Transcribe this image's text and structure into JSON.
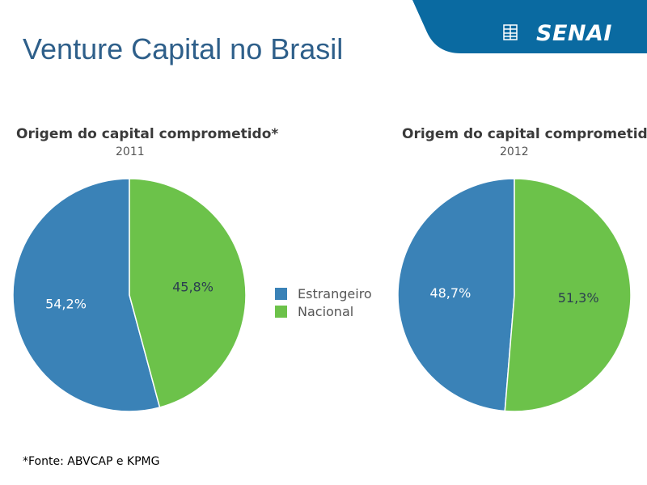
{
  "slide": {
    "title": "Venture Capital no Brasil",
    "footnote": "*Fonte: ABVCAP e KPMG"
  },
  "logo": {
    "text": "SENAI",
    "color": "#0a6aa1",
    "icon": "senai-grid-icon"
  },
  "colors": {
    "estrangeiro": "#3a82b7",
    "nacional": "#6cc24a"
  },
  "chart_data": [
    {
      "type": "pie",
      "title": "Origem do capital comprometido*",
      "subtitle": "2011",
      "slices": [
        {
          "name": "Estrangeiro",
          "value": 54.2,
          "label": "54,2%"
        },
        {
          "name": "Nacional",
          "value": 45.8,
          "label": "45,8%"
        }
      ]
    },
    {
      "type": "pie",
      "title": "Origem do capital comprometido*",
      "subtitle": "2012",
      "slices": [
        {
          "name": "Estrangeiro",
          "value": 48.7,
          "label": "48,7%"
        },
        {
          "name": "Nacional",
          "value": 51.3,
          "label": "51,3%"
        }
      ]
    }
  ],
  "legend": {
    "items": [
      {
        "label": "Estrangeiro",
        "color": "#3a82b7"
      },
      {
        "label": "Nacional",
        "color": "#6cc24a"
      }
    ]
  }
}
